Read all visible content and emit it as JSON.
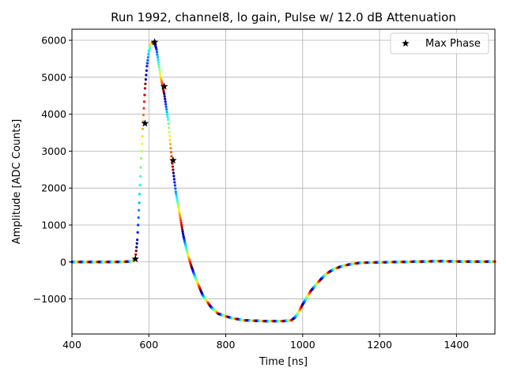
{
  "chart_data": {
    "type": "scatter",
    "title": "Run 1992, channel8, lo gain, Pulse w/ 12.0 dB Attenuation",
    "xlabel": "Time [ns]",
    "ylabel": "Amplitude [ADC Counts]",
    "xlim": [
      400,
      1500
    ],
    "ylim": [
      -1950,
      6300
    ],
    "xticks": [
      400,
      600,
      800,
      1000,
      1200,
      1400
    ],
    "yticks": [
      -1000,
      0,
      1000,
      2000,
      3000,
      4000,
      5000,
      6000
    ],
    "ytick_labels": [
      "−1000",
      "0",
      "1000",
      "2000",
      "3000",
      "4000",
      "5000",
      "6000"
    ],
    "grid": true,
    "legend_position": "top-right",
    "colormap": "jet",
    "waveform": {
      "x": [
        400,
        500,
        550,
        560,
        565,
        570,
        575,
        580,
        585,
        590,
        595,
        600,
        605,
        610,
        615,
        620,
        625,
        630,
        640,
        650,
        660,
        670,
        680,
        690,
        700,
        710,
        720,
        740,
        760,
        780,
        800,
        820,
        850,
        900,
        950,
        970,
        980,
        990,
        1000,
        1020,
        1040,
        1060,
        1080,
        1100,
        1120,
        1150,
        1200,
        1250,
        1300,
        1350,
        1400,
        1450,
        1500
      ],
      "y": [
        0,
        0,
        10,
        40,
        100,
        600,
        1600,
        2800,
        3800,
        4700,
        5300,
        5700,
        5900,
        5950,
        5920,
        5750,
        5400,
        5050,
        4550,
        3850,
        2750,
        1900,
        1300,
        700,
        250,
        -100,
        -400,
        -900,
        -1200,
        -1400,
        -1470,
        -1530,
        -1580,
        -1600,
        -1600,
        -1580,
        -1500,
        -1350,
        -1150,
        -800,
        -550,
        -330,
        -200,
        -120,
        -70,
        -20,
        -10,
        0,
        10,
        20,
        15,
        10,
        10
      ]
    },
    "series": [
      {
        "name": "Max Phase",
        "marker": "star",
        "color": "#000000",
        "x": [
          565,
          590,
          615,
          640,
          663
        ],
        "y": [
          80,
          3750,
          5950,
          4750,
          2750
        ]
      }
    ]
  }
}
